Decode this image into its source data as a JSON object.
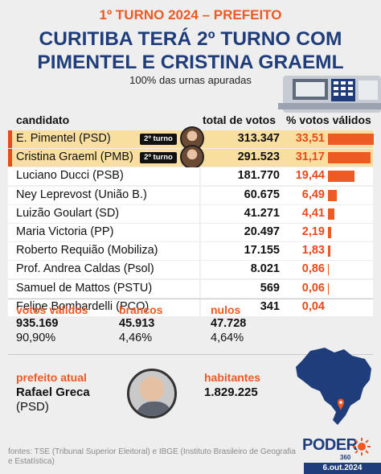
{
  "header": {
    "kicker": "1º TURNO 2024 – PREFEITO",
    "headline_line1": "CURITIBA TERÁ 2º TURNO COM",
    "headline_line2": "PIMENTEL E CRISTINA GRAEML",
    "subtitle": "100% das urnas apuradas"
  },
  "table": {
    "col_candidate": "candidato",
    "col_votes": "total de votos",
    "col_pct": "% votos válidos",
    "badge_label": "2º turno"
  },
  "chart_data": {
    "type": "bar",
    "categories": [
      "E. Pimentel (PSD)",
      "Cristina Graeml (PMB)",
      "Luciano Ducci (PSB)",
      "Ney Leprevost (União B.)",
      "Luizão Goulart (SD)",
      "Maria Victoria (PP)",
      "Roberto Requião (Mobiliza)",
      "Prof. Andrea Caldas (Psol)",
      "Samuel de Mattos (PSTU)",
      "Felipe Bombardelli (PCO)"
    ],
    "votes_labels": [
      "313.347",
      "291.523",
      "181.770",
      "60.675",
      "41.271",
      "20.497",
      "17.155",
      "8.021",
      "569",
      "341"
    ],
    "pct_labels": [
      "33,51",
      "31,17",
      "19,44",
      "6,49",
      "4,41",
      "2,19",
      "1,83",
      "0,86",
      "0,06",
      "0,04"
    ],
    "values": [
      33.51,
      31.17,
      19.44,
      6.49,
      4.41,
      2.19,
      1.83,
      0.86,
      0.06,
      0.04
    ],
    "second_round": [
      true,
      true,
      false,
      false,
      false,
      false,
      false,
      false,
      false,
      false
    ],
    "ylim": [
      0,
      35
    ]
  },
  "summary": {
    "valid_label": "votos válidos",
    "valid_value": "935.169",
    "valid_pct": "90,90%",
    "blank_label": "brancos",
    "blank_value": "45.913",
    "blank_pct": "4,46%",
    "null_label": "nulos",
    "null_value": "47.728",
    "null_pct": "4,64%"
  },
  "mayor": {
    "label": "prefeito atual",
    "name": "Rafael Greca",
    "party": "(PSD)"
  },
  "population": {
    "label": "habitantes",
    "value": "1.829.225"
  },
  "footer": {
    "sources": "fontes: TSE (Tribunal Superior Eleitoral) e IBGE (Instituto Brasileiro de Geografia e Estatística)",
    "logo": "PODER",
    "logo_sub": "360",
    "date": "6.out.2024"
  },
  "colors": {
    "accent": "#ee5a24",
    "navy": "#1f3d7a",
    "highlight": "#f8dfa0"
  }
}
